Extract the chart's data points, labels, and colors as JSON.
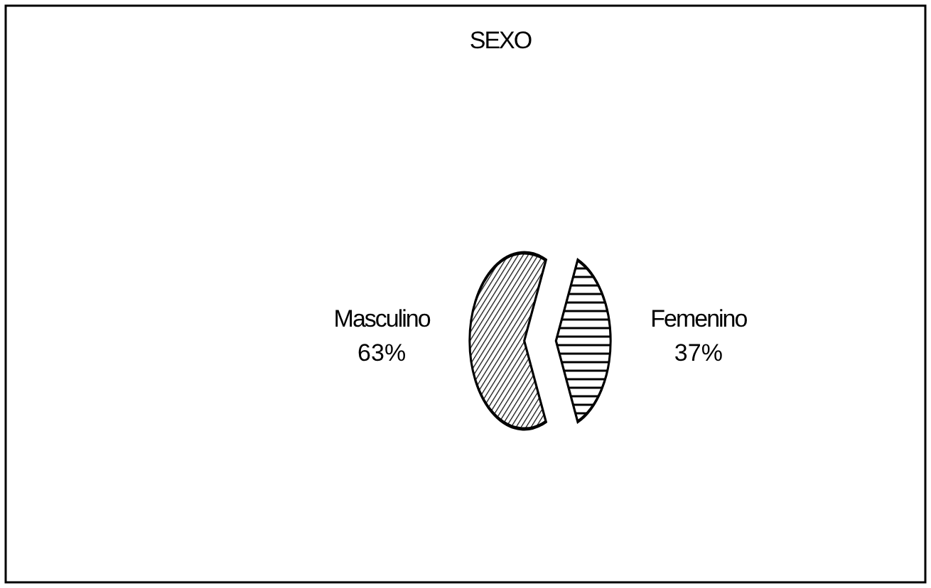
{
  "chart_data": {
    "type": "pie",
    "title": "SEXO",
    "categories": [
      "Masculino",
      "Femenino"
    ],
    "values": [
      63,
      37
    ],
    "value_labels": [
      "63%",
      "37%"
    ],
    "colors": [
      "#ffffff",
      "#ffffff"
    ]
  }
}
